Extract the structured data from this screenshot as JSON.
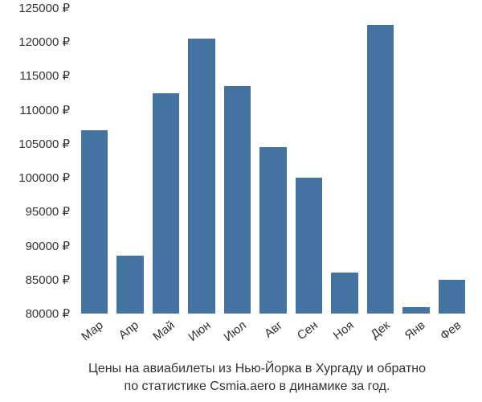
{
  "chart": {
    "type": "bar",
    "categories": [
      "Мар",
      "Апр",
      "Май",
      "Июн",
      "Июл",
      "Авг",
      "Сен",
      "Ноя",
      "Дек",
      "Янв",
      "Фев"
    ],
    "values": [
      107000,
      88500,
      112500,
      120500,
      113500,
      104500,
      100000,
      86000,
      122500,
      81000,
      85000
    ],
    "bar_color": "#4573a1",
    "background_color": "#ffffff",
    "ylim": [
      80000,
      125000
    ],
    "ytick_step": 5000,
    "y_ticks": [
      80000,
      85000,
      90000,
      95000,
      100000,
      105000,
      110000,
      115000,
      120000,
      125000
    ],
    "y_tick_labels": [
      "80000 ₽",
      "85000 ₽",
      "90000 ₽",
      "95000 ₽",
      "100000 ₽",
      "105000 ₽",
      "110000 ₽",
      "115000 ₽",
      "120000 ₽",
      "125000 ₽"
    ],
    "currency_symbol": "₽",
    "bar_width_ratio": 0.75,
    "label_fontsize": 15,
    "caption_fontsize": 16,
    "x_label_rotation": -38,
    "text_color": "#333333"
  },
  "caption": {
    "line1": "Цены на авиабилеты из Нью-Йорка в Хургаду и обратно",
    "line2": "по статистике Csmia.aero в динамике за год."
  }
}
